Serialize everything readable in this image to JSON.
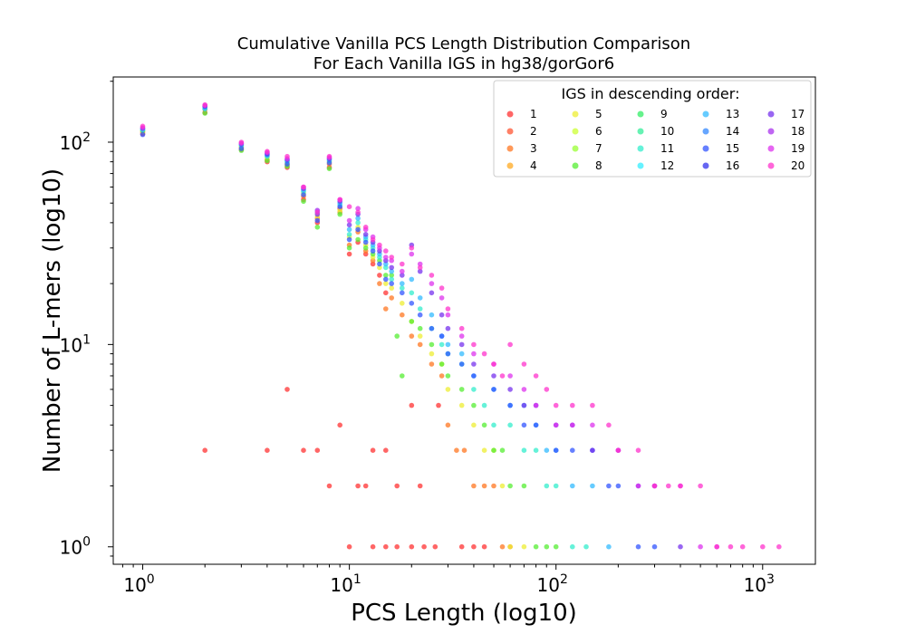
{
  "chart_data": {
    "type": "scatter",
    "title": "Cumulative Vanilla PCS Length Distribution Comparison",
    "subtitle": "For Each Vanilla IGS in hg38/gorGor6",
    "xlabel": "PCS Length (log10)",
    "ylabel": "Number of L-mers (log10)",
    "xscale": "log",
    "yscale": "log",
    "xlim": [
      0.72,
      1800
    ],
    "ylim": [
      0.82,
      210
    ],
    "xticks": [
      {
        "base": "10",
        "exp": "0",
        "value": 1
      },
      {
        "base": "10",
        "exp": "1",
        "value": 10
      },
      {
        "base": "10",
        "exp": "2",
        "value": 100
      },
      {
        "base": "10",
        "exp": "3",
        "value": 1000
      }
    ],
    "yticks": [
      {
        "base": "10",
        "exp": "0",
        "value": 1
      },
      {
        "base": "10",
        "exp": "1",
        "value": 10
      },
      {
        "base": "10",
        "exp": "2",
        "value": 100
      }
    ],
    "grid": false,
    "legend": {
      "title": "IGS in descending order:",
      "position": "top-right",
      "columns": 5,
      "entries": [
        "1",
        "2",
        "3",
        "4",
        "5",
        "6",
        "7",
        "8",
        "9",
        "10",
        "11",
        "12",
        "13",
        "14",
        "15",
        "16",
        "17",
        "18",
        "19",
        "20"
      ],
      "colors": [
        "#ff3333",
        "#ff5533",
        "#ff7722",
        "#ffaa22",
        "#eeee33",
        "#ccff33",
        "#99ff33",
        "#55ee33",
        "#33ee66",
        "#33ee99",
        "#33eecc",
        "#33eeff",
        "#33bbff",
        "#3388ff",
        "#3355ff",
        "#3333ee",
        "#7733ee",
        "#aa33ee",
        "#dd33ee",
        "#ff33cc"
      ]
    },
    "series": [
      {
        "name": "1",
        "color": "#ff3333",
        "x": [
          1,
          2,
          3,
          4,
          5,
          6,
          7,
          8,
          9,
          10,
          11,
          12,
          13,
          14,
          15,
          5,
          9,
          2,
          4,
          6,
          7,
          13,
          15,
          8,
          11,
          12,
          17,
          22,
          20,
          27,
          10,
          13,
          15,
          17,
          20,
          23,
          26,
          35,
          40,
          45
        ],
        "y": [
          110,
          140,
          92,
          80,
          75,
          52,
          40,
          75,
          47,
          28,
          32,
          28,
          25,
          22,
          18,
          6,
          4,
          3,
          3,
          3,
          3,
          3,
          3,
          2,
          2,
          2,
          2,
          2,
          5,
          5,
          1,
          1,
          1,
          1,
          1,
          1,
          1,
          1,
          1,
          1
        ]
      },
      {
        "name": "3",
        "color": "#ff7722",
        "x": [
          1,
          2,
          3,
          4,
          5,
          6,
          7,
          8,
          9,
          10,
          11,
          12,
          13,
          14,
          15,
          16,
          18,
          20,
          22,
          25,
          28,
          30,
          33,
          36,
          40,
          45,
          50,
          55,
          60
        ],
        "y": [
          112,
          145,
          94,
          82,
          77,
          54,
          42,
          78,
          45,
          31,
          36,
          29,
          26,
          20,
          15,
          17,
          14,
          11,
          10,
          8,
          7,
          4,
          3,
          3,
          2,
          2,
          2,
          1,
          1
        ]
      },
      {
        "name": "5",
        "color": "#eeee33",
        "x": [
          1,
          2,
          3,
          4,
          5,
          6,
          7,
          8,
          9,
          10,
          11,
          12,
          13,
          14,
          15,
          16,
          18,
          20,
          22,
          25,
          28,
          30,
          35,
          40,
          45,
          50,
          55,
          60,
          70
        ],
        "y": [
          113,
          148,
          95,
          84,
          79,
          56,
          43,
          80,
          46,
          34,
          38,
          31,
          27,
          24,
          20,
          19,
          16,
          13,
          11,
          9,
          8,
          6,
          5,
          4,
          3,
          3,
          2,
          1,
          1
        ]
      },
      {
        "name": "8",
        "color": "#55ee33",
        "x": [
          1,
          2,
          3,
          4,
          5,
          6,
          7,
          8,
          9,
          10,
          11,
          12,
          13,
          14,
          15,
          16,
          17,
          18,
          20,
          22,
          25,
          28,
          30,
          35,
          40,
          45,
          50,
          55,
          60,
          70,
          80,
          90,
          100
        ],
        "y": [
          114,
          139,
          91,
          81,
          76,
          51,
          38,
          74,
          44,
          30,
          33,
          30,
          28,
          26,
          22,
          22,
          11,
          7,
          13,
          12,
          10,
          8,
          7,
          6,
          5,
          4,
          3,
          3,
          2,
          2,
          1,
          1,
          1
        ]
      },
      {
        "name": "11",
        "color": "#33eecc",
        "x": [
          1,
          2,
          3,
          4,
          5,
          6,
          7,
          8,
          9,
          10,
          11,
          12,
          13,
          14,
          15,
          16,
          18,
          20,
          22,
          25,
          28,
          30,
          35,
          40,
          45,
          50,
          60,
          70,
          80,
          90,
          100,
          120,
          140
        ],
        "y": [
          116,
          146,
          96,
          85,
          80,
          57,
          45,
          81,
          49,
          35,
          40,
          33,
          30,
          27,
          24,
          21,
          19,
          18,
          15,
          12,
          10,
          9,
          8,
          6,
          5,
          4,
          4,
          3,
          3,
          2,
          2,
          1,
          1
        ]
      },
      {
        "name": "13",
        "color": "#33bbff",
        "x": [
          1,
          2,
          3,
          4,
          5,
          6,
          7,
          8,
          9,
          10,
          11,
          12,
          13,
          14,
          15,
          16,
          18,
          20,
          22,
          25,
          28,
          30,
          35,
          40,
          50,
          60,
          70,
          80,
          90,
          100,
          120,
          150,
          180
        ],
        "y": [
          115,
          147,
          97,
          86,
          81,
          58,
          46,
          82,
          50,
          37,
          42,
          34,
          31,
          28,
          25,
          23,
          20,
          21,
          17,
          14,
          11,
          10,
          9,
          7,
          6,
          5,
          5,
          4,
          3,
          3,
          2,
          2,
          1
        ]
      },
      {
        "name": "15",
        "color": "#3355ff",
        "x": [
          1,
          2,
          3,
          4,
          5,
          6,
          7,
          8,
          9,
          10,
          11,
          12,
          13,
          14,
          15,
          16,
          18,
          20,
          22,
          25,
          28,
          30,
          35,
          40,
          50,
          60,
          70,
          80,
          100,
          120,
          150,
          180,
          200,
          250,
          300
        ],
        "y": [
          109,
          150,
          93,
          87,
          78,
          55,
          41,
          79,
          48,
          33,
          37,
          32,
          29,
          25,
          21,
          20,
          18,
          16,
          14,
          12,
          11,
          9,
          8,
          7,
          6,
          5,
          4,
          4,
          3,
          3,
          3,
          2,
          2,
          1,
          1
        ]
      },
      {
        "name": "17",
        "color": "#7733ee",
        "x": [
          1,
          2,
          3,
          4,
          5,
          6,
          7,
          8,
          9,
          10,
          11,
          12,
          13,
          14,
          15,
          16,
          18,
          20,
          22,
          25,
          28,
          30,
          35,
          40,
          50,
          60,
          70,
          80,
          100,
          120,
          150,
          200,
          250,
          300,
          400
        ],
        "y": [
          117,
          151,
          98,
          88,
          82,
          59,
          44,
          83,
          51,
          39,
          44,
          35,
          32,
          29,
          26,
          24,
          22,
          31,
          23,
          18,
          14,
          12,
          10,
          8,
          7,
          6,
          5,
          5,
          4,
          4,
          3,
          3,
          2,
          2,
          1
        ]
      },
      {
        "name": "19",
        "color": "#dd33ee",
        "x": [
          1,
          2,
          3,
          4,
          5,
          6,
          7,
          8,
          9,
          10,
          11,
          12,
          13,
          14,
          15,
          16,
          18,
          20,
          22,
          25,
          28,
          30,
          35,
          40,
          50,
          60,
          70,
          80,
          100,
          120,
          150,
          200,
          250,
          300,
          400,
          500,
          600
        ],
        "y": [
          118,
          152,
          99,
          89,
          83,
          60,
          46,
          84,
          52,
          41,
          47,
          37,
          34,
          30,
          27,
          26,
          23,
          28,
          25,
          20,
          17,
          14,
          11,
          9,
          8,
          7,
          6,
          5,
          4,
          4,
          4,
          3,
          2,
          2,
          2,
          1,
          1
        ]
      },
      {
        "name": "20",
        "color": "#ff33cc",
        "x": [
          1,
          2,
          3,
          4,
          5,
          6,
          7,
          8,
          9,
          10,
          11,
          12,
          13,
          14,
          15,
          16,
          18,
          20,
          22,
          25,
          28,
          30,
          35,
          40,
          45,
          50,
          55,
          60,
          70,
          80,
          90,
          100,
          120,
          150,
          180,
          200,
          250,
          300,
          350,
          400,
          500,
          600,
          700,
          800,
          1000,
          1200
        ],
        "y": [
          120,
          153,
          100,
          90,
          85,
          60,
          45,
          85,
          52,
          48,
          45,
          38,
          33,
          31,
          29,
          27,
          25,
          30,
          24,
          22,
          19,
          15,
          12,
          10,
          9,
          8,
          7,
          10,
          8,
          7,
          6,
          5,
          5,
          5,
          4,
          3,
          3,
          2,
          2,
          2,
          2,
          1,
          1,
          1,
          1,
          1
        ]
      }
    ]
  }
}
